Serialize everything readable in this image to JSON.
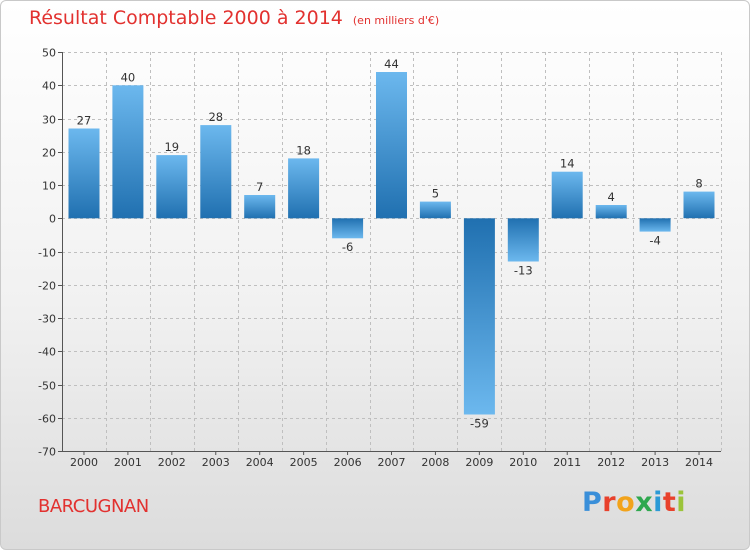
{
  "chart_data": {
    "type": "bar",
    "title": "Résultat Comptable 2000 à 2014",
    "subtitle": "(en milliers d'€)",
    "categories": [
      "2000",
      "2001",
      "2002",
      "2003",
      "2004",
      "2005",
      "2006",
      "2007",
      "2008",
      "2009",
      "2010",
      "2011",
      "2012",
      "2013",
      "2014"
    ],
    "values": [
      27,
      40,
      19,
      28,
      7,
      18,
      -6,
      44,
      5,
      -59,
      -13,
      14,
      4,
      -4,
      8
    ],
    "ylim": [
      -70,
      50
    ],
    "yticks": [
      50,
      40,
      30,
      20,
      10,
      0,
      -10,
      -20,
      -30,
      -40,
      -50,
      -60,
      -70
    ],
    "grid": true,
    "xlabel": "",
    "ylabel": ""
  },
  "footer": {
    "place": "BARCUGNAN",
    "brand": [
      "P",
      "r",
      "o",
      "x",
      "i",
      "t",
      "i"
    ]
  },
  "colors": {
    "title": "#e2312f",
    "bar_light": "#6cb8ee",
    "bar_dark": "#2070b0",
    "grid": "#bfbfbf"
  }
}
